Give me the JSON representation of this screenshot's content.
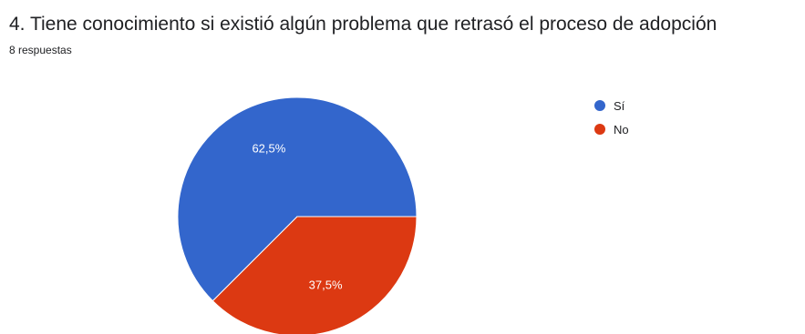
{
  "header": {
    "title": "4. Tiene conocimiento si existió algún problema que retrasó el proceso de adopción",
    "response_count": "8 respuestas"
  },
  "chart_data": {
    "type": "pie",
    "title": "4. Tiene conocimiento si existió algún problema que retrasó el proceso de adopción",
    "legend_position": "right",
    "slices": [
      {
        "label": "Sí",
        "value": 62.5,
        "display": "62,5%",
        "color": "#3366cc"
      },
      {
        "label": "No",
        "value": 37.5,
        "display": "37,5%",
        "color": "#dc3912"
      }
    ]
  },
  "legend": {
    "items": [
      {
        "label": "Sí",
        "color": "#3366cc"
      },
      {
        "label": "No",
        "color": "#dc3912"
      }
    ]
  }
}
